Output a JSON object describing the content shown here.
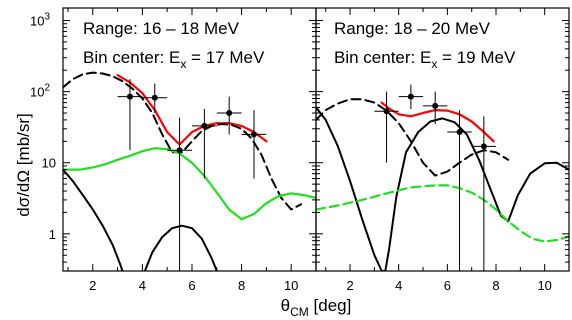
{
  "chart_data": {
    "type": "line",
    "xlabel": "θ_CM [deg]",
    "ylabel": "dσ/dΩ [mb/sr]",
    "yscale": "log",
    "ylim": [
      0.3,
      1500
    ],
    "x_ticks": [
      2,
      4,
      6,
      8,
      10
    ],
    "y_ticks": [
      {
        "value": 1,
        "label": "1"
      },
      {
        "value": 10,
        "label": "10"
      },
      {
        "value": 100,
        "label": "10",
        "sup": "2"
      },
      {
        "value": 1000,
        "label": "10",
        "sup": "3"
      }
    ],
    "panels": [
      {
        "annotation_line1": "Range: 16 – 18 MeV",
        "annotation_line2": "Bin center: E",
        "annotation_sub": "x",
        "annotation_line2_end": " = 17 MeV",
        "xlim": [
          0.8,
          11
        ],
        "data": [
          {
            "x": 3.5,
            "y": 85,
            "xerr": 0.5,
            "ylo": 15,
            "yhi": 150
          },
          {
            "x": 4.5,
            "y": 82,
            "xerr": 0.5,
            "ylo": 50,
            "yhi": 130
          },
          {
            "x": 5.5,
            "y": 15,
            "xerr": 0.5,
            "ylo": 0.3,
            "yhi": 43
          },
          {
            "x": 6.5,
            "y": 33,
            "xerr": 0.5,
            "ylo": 6,
            "yhi": 57
          },
          {
            "x": 7.5,
            "y": 50,
            "xerr": 0.5,
            "ylo": 25,
            "yhi": 85
          },
          {
            "x": 8.5,
            "y": 25,
            "xerr": 0.5,
            "ylo": 6,
            "yhi": 55
          }
        ],
        "series": [
          {
            "color": "#ff0000",
            "style": "solid",
            "x": [
              3.0,
              3.5,
              4.0,
              4.5,
              5.0,
              5.5,
              6.0,
              6.5,
              7.0,
              7.5,
              8.0,
              8.5,
              9.0
            ],
            "y": [
              170,
              135,
              95,
              55,
              27,
              18,
              27,
              33,
              36,
              36,
              33,
              27,
              20
            ]
          },
          {
            "color": "#000000",
            "style": "dashed",
            "x": [
              0.8,
              1.2,
              1.6,
              2.0,
              2.4,
              2.8,
              3.2,
              3.6,
              4.0,
              4.4,
              4.8,
              5.2,
              5.6,
              6.0,
              6.4,
              6.8,
              7.2,
              7.6,
              8.0,
              8.4,
              8.8,
              9.2,
              9.6,
              10.0,
              10.4
            ],
            "y": [
              115,
              150,
              175,
              185,
              180,
              165,
              140,
              110,
              80,
              50,
              25,
              14,
              14,
              20,
              28,
              33,
              35,
              34,
              30,
              22,
              13,
              6,
              3.2,
              2.2,
              2.6
            ]
          },
          {
            "color": "#22dd22",
            "style": "solid",
            "x": [
              0.8,
              1.5,
              2.0,
              2.5,
              3.0,
              3.5,
              4.0,
              4.5,
              5.0,
              5.5,
              6.0,
              6.5,
              7.0,
              7.5,
              8.0,
              8.5,
              9.0,
              9.5,
              10.0,
              10.5,
              11.0
            ],
            "y": [
              8,
              8,
              8.6,
              9.5,
              11,
              12.5,
              14.5,
              16,
              15.5,
              13.5,
              10,
              6.5,
              3.8,
              2.2,
              1.6,
              1.9,
              2.7,
              3.4,
              3.7,
              3.5,
              3.2
            ]
          },
          {
            "color": "#000000",
            "style": "solid",
            "x": [
              0.8,
              1.2,
              1.6,
              2.0,
              2.4,
              2.8,
              3.1,
              3.2
            ],
            "y": [
              8,
              5.5,
              3.5,
              2.2,
              1.3,
              0.7,
              0.38,
              0.3
            ]
          },
          {
            "color": "#000000",
            "style": "solid",
            "x": [
              4.1,
              4.4,
              4.8,
              5.2,
              5.6,
              6.0,
              6.4,
              6.8,
              7.0
            ],
            "y": [
              0.3,
              0.55,
              0.9,
              1.2,
              1.3,
              1.2,
              0.85,
              0.45,
              0.3
            ]
          }
        ]
      },
      {
        "annotation_line1": "Range: 18 – 20 MeV",
        "annotation_line2": "Bin center: E",
        "annotation_sub": "x",
        "annotation_line2_end": " = 19 MeV",
        "xlim": [
          0.6,
          11
        ],
        "data": [
          {
            "x": 3.5,
            "y": 53,
            "xerr": 0.5,
            "ylo": 10,
            "yhi": 100
          },
          {
            "x": 4.5,
            "y": 85,
            "xerr": 0.5,
            "ylo": 57,
            "yhi": 125
          },
          {
            "x": 5.5,
            "y": 63,
            "xerr": 0.5,
            "ylo": 35,
            "yhi": 100
          },
          {
            "x": 6.5,
            "y": 27,
            "xerr": 0.5,
            "ylo": 0.3,
            "yhi": 55
          },
          {
            "x": 7.5,
            "y": 17,
            "xerr": 0.5,
            "ylo": 0.3,
            "yhi": 45
          }
        ],
        "series": [
          {
            "color": "#ff0000",
            "style": "solid",
            "x": [
              3.3,
              3.6,
              4.0,
              4.5,
              5.0,
              5.5,
              6.0,
              6.5,
              7.0,
              7.5,
              7.9
            ],
            "y": [
              70,
              58,
              48,
              45,
              50,
              55,
              54,
              48,
              38,
              27,
              20
            ]
          },
          {
            "color": "#000000",
            "style": "dashed",
            "x": [
              0.6,
              1.0,
              1.5,
              2.0,
              2.5,
              3.0,
              3.5,
              4.0,
              4.5,
              5.0,
              5.5,
              6.0,
              6.5,
              7.0,
              7.5,
              8.0,
              8.5
            ],
            "y": [
              40,
              55,
              68,
              78,
              78,
              70,
              54,
              36,
              20,
              10,
              6.6,
              7.5,
              10,
              13,
              15,
              14,
              11
            ]
          },
          {
            "color": "#000000",
            "style": "solid",
            "x": [
              0.6,
              1.0,
              1.5,
              2.0,
              2.5,
              3.0,
              3.3,
              3.45,
              3.6,
              3.9,
              4.3,
              4.8,
              5.3,
              5.8,
              6.3,
              6.8,
              7.3,
              7.8,
              8.2,
              8.5,
              8.9,
              9.4,
              10.0,
              10.5,
              11.0
            ],
            "y": [
              60,
              40,
              17,
              5.5,
              1.6,
              0.5,
              0.3,
              0.3,
              0.6,
              3.3,
              14,
              27,
              38,
              42,
              37,
              25,
              11,
              4,
              1.8,
              1.5,
              3.5,
              7,
              9.8,
              10,
              8
            ]
          },
          {
            "color": "#22dd22",
            "style": "dashed",
            "x": [
              0.6,
              1.5,
              2.5,
              3.5,
              4.5,
              5.5,
              6.0,
              6.5,
              7.0,
              7.5,
              8.0,
              8.5,
              9.0,
              9.5,
              10.0,
              10.5,
              11.0
            ],
            "y": [
              2.2,
              2.5,
              3.0,
              3.7,
              4.5,
              4.8,
              4.8,
              4.4,
              3.8,
              3.0,
              2.2,
              1.5,
              1.1,
              0.85,
              0.78,
              0.82,
              0.92
            ]
          }
        ]
      }
    ]
  }
}
